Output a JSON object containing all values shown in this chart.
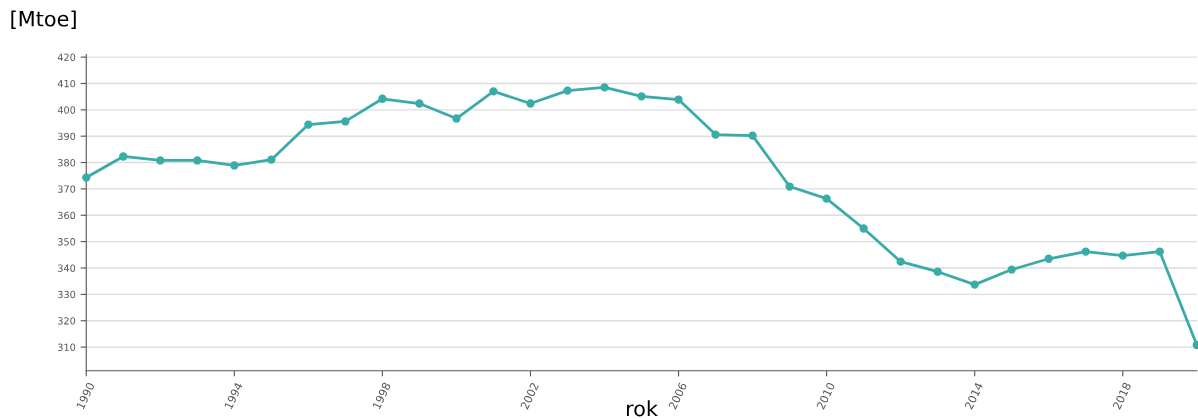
{
  "chart_data": {
    "type": "line",
    "ylabel": "[Mtoe]",
    "xlabel": "rok",
    "x": [
      1990,
      1991,
      1992,
      1993,
      1994,
      1995,
      1996,
      1997,
      1998,
      1999,
      2000,
      2001,
      2002,
      2003,
      2004,
      2005,
      2006,
      2007,
      2008,
      2009,
      2010,
      2011,
      2012,
      2013,
      2014,
      2015,
      2016,
      2017,
      2018,
      2019,
      2020
    ],
    "series": [
      {
        "color": "#3aaca8",
        "values": [
          374.3,
          382.3,
          380.8,
          380.8,
          378.9,
          381.1,
          394.4,
          395.6,
          404.2,
          402.4,
          396.7,
          407,
          402.4,
          407.3,
          408.5,
          405.1,
          403.9,
          390.6,
          390.2,
          370.9,
          366.3,
          355,
          342.4,
          338.6,
          333.7,
          339.4,
          343.5,
          346.2,
          344.7,
          346.2,
          310.8
        ]
      }
    ],
    "xlim": [
      1990,
      2020
    ],
    "xticks": [
      1990,
      1994,
      1998,
      2002,
      2006,
      2010,
      2014,
      2018
    ],
    "ylim": [
      301,
      421
    ],
    "yticks": [
      310,
      320,
      330,
      340,
      350,
      360,
      370,
      380,
      390,
      400,
      410,
      420
    ],
    "grid": "y",
    "marker": "circle",
    "line_style": "solid"
  }
}
